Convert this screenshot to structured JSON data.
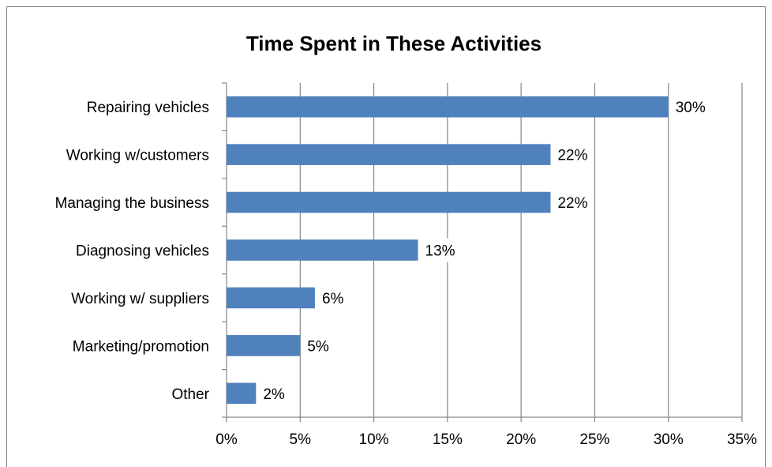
{
  "chart_data": {
    "type": "bar",
    "orientation": "horizontal",
    "title": "Time Spent in These Activities",
    "xlabel": "",
    "ylabel": "",
    "categories": [
      "Repairing vehicles",
      "Working w/customers",
      "Managing the business",
      "Diagnosing vehicles",
      "Working w/ suppliers",
      "Marketing/promotion",
      "Other"
    ],
    "values": [
      30,
      22,
      22,
      13,
      6,
      5,
      2
    ],
    "data_labels": [
      "30%",
      "22%",
      "22%",
      "13%",
      "6%",
      "5%",
      "2%"
    ],
    "xlim": [
      0,
      35
    ],
    "ticks": [
      0,
      5,
      10,
      15,
      20,
      25,
      30,
      35
    ],
    "tick_labels": [
      "0%",
      "5%",
      "10%",
      "15%",
      "20%",
      "25%",
      "30%",
      "35%"
    ],
    "grid": "vertical",
    "legend": "none",
    "bar_color": "#4f81bd",
    "gridline_color": "#868686"
  }
}
